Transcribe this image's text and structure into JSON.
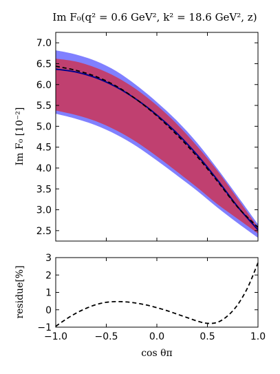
{
  "chart_data": {
    "type": "area",
    "title": "Im F₀(q² = 0.6 GeV², k² = 18.6 GeV², z)",
    "x": [
      -1.0,
      -0.8,
      -0.6,
      -0.4,
      -0.2,
      0.0,
      0.2,
      0.4,
      0.6,
      0.8,
      1.0
    ],
    "xlabel": "cos θπ",
    "xlim": [
      -1.0,
      1.0
    ],
    "xticks": [
      "−1.0",
      "−0.5",
      "0.0",
      "0.5",
      "1.0"
    ],
    "xtick_values": [
      -1.0,
      -0.5,
      0.0,
      0.5,
      1.0
    ],
    "panels": [
      {
        "name": "main",
        "ylabel": "Im F₀ [10⁻²]",
        "ylim": [
          2.25,
          7.25
        ],
        "yticks": [
          "2.5",
          "3.0",
          "3.5",
          "4.0",
          "4.5",
          "5.0",
          "5.5",
          "6.0",
          "6.5",
          "7.0"
        ],
        "ytick_values": [
          2.5,
          3.0,
          3.5,
          4.0,
          4.5,
          5.0,
          5.5,
          6.0,
          6.5,
          7.0
        ],
        "bands": [
          {
            "color": "#8080ff",
            "lower": [
              5.3,
              5.18,
              5.02,
              4.8,
              4.52,
              4.18,
              3.82,
              3.45,
              3.05,
              2.68,
              2.33
            ],
            "upper": [
              6.82,
              6.72,
              6.56,
              6.32,
              5.98,
              5.58,
              5.13,
              4.6,
              3.98,
              3.32,
              2.65
            ]
          },
          {
            "color": "#c04070",
            "lower": [
              5.38,
              5.27,
              5.12,
              4.9,
              4.62,
              4.28,
              3.91,
              3.53,
              3.13,
              2.78,
              2.43
            ],
            "upper": [
              6.62,
              6.55,
              6.4,
              6.18,
              5.88,
              5.5,
              5.05,
              4.52,
              3.93,
              3.26,
              2.58
            ]
          }
        ],
        "series": [
          {
            "style": "solid",
            "color": "#00008b",
            "values": [
              6.37,
              6.3,
              6.16,
              5.94,
              5.64,
              5.27,
              4.83,
              4.31,
              3.71,
              3.07,
              2.52
            ]
          },
          {
            "style": "dashed",
            "color": "#000000",
            "values": [
              6.44,
              6.34,
              6.19,
              5.96,
              5.64,
              5.25,
              4.79,
              4.27,
              3.68,
              3.06,
              2.58
            ]
          }
        ]
      },
      {
        "name": "residue",
        "ylabel": "residue[%]",
        "ylim": [
          -1,
          3
        ],
        "yticks": [
          "−1",
          "0",
          "1",
          "2",
          "3"
        ],
        "ytick_values": [
          -1,
          0,
          1,
          2,
          3
        ],
        "series": [
          {
            "style": "dashed",
            "color": "#000000",
            "x": [
              -1.0,
              -0.9,
              -0.8,
              -0.7,
              -0.6,
              -0.5,
              -0.4,
              -0.3,
              -0.2,
              -0.1,
              0.0,
              0.1,
              0.2,
              0.3,
              0.4,
              0.5,
              0.6,
              0.7,
              0.8,
              0.9,
              1.0
            ],
            "values": [
              -0.95,
              -0.55,
              -0.2,
              0.08,
              0.3,
              0.43,
              0.47,
              0.45,
              0.38,
              0.27,
              0.12,
              -0.05,
              -0.25,
              -0.45,
              -0.65,
              -0.78,
              -0.72,
              -0.35,
              0.3,
              1.3,
              2.7
            ]
          }
        ]
      }
    ]
  }
}
